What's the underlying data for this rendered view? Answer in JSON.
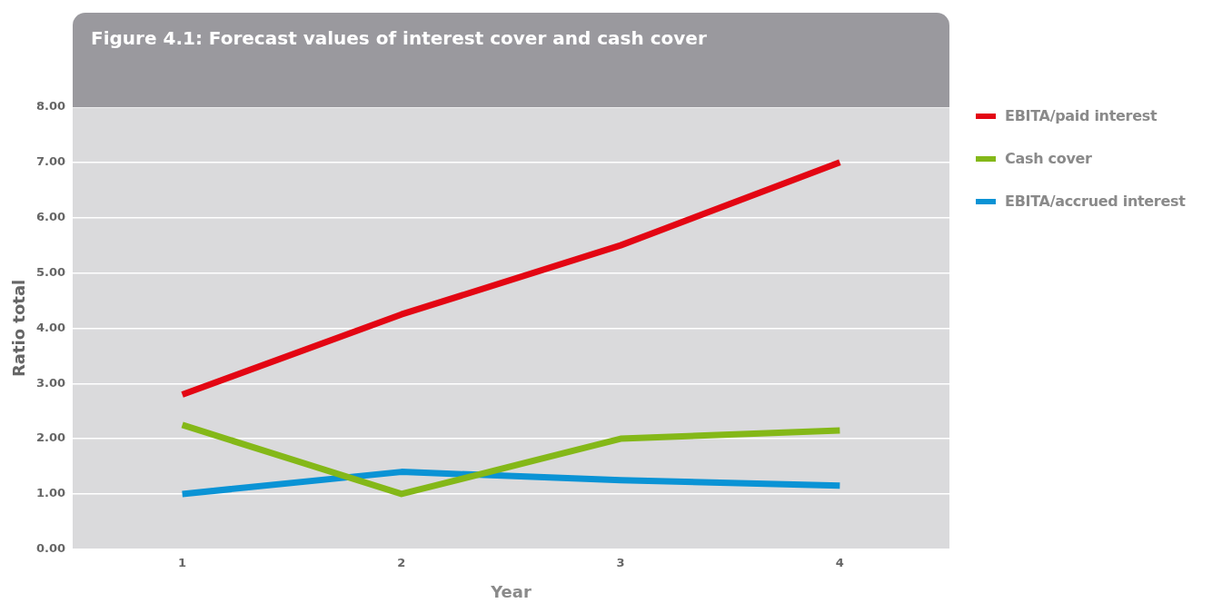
{
  "chart_data": {
    "type": "line",
    "title": "Figure 4.1: Forecast values of interest cover and cash cover",
    "xlabel": "Year",
    "ylabel": "Ratio total",
    "categories": [
      "1",
      "2",
      "3",
      "4"
    ],
    "series": [
      {
        "name": "EBITA/paid interest",
        "color": "#e30613",
        "values": [
          2.8,
          4.25,
          5.5,
          7.0
        ]
      },
      {
        "name": "Cash cover",
        "color": "#84b818",
        "values": [
          2.25,
          1.0,
          2.0,
          2.15
        ]
      },
      {
        "name": "EBITA/accrued interest",
        "color": "#0a93d5",
        "values": [
          1.0,
          1.4,
          1.25,
          1.15
        ]
      }
    ],
    "ylim": [
      0,
      8
    ],
    "yticks": [
      {
        "value": 0,
        "label": "0.00"
      },
      {
        "value": 1,
        "label": "1.00"
      },
      {
        "value": 2,
        "label": "2.00"
      },
      {
        "value": 3,
        "label": "3.00"
      },
      {
        "value": 4,
        "label": "4.00"
      },
      {
        "value": 5,
        "label": "5.00"
      },
      {
        "value": 6,
        "label": "6.00"
      },
      {
        "value": 7,
        "label": "7.00"
      },
      {
        "value": 8,
        "label": "8.00"
      }
    ],
    "grid": "y",
    "legend": "right",
    "marker": "none",
    "line_style": "solid"
  }
}
